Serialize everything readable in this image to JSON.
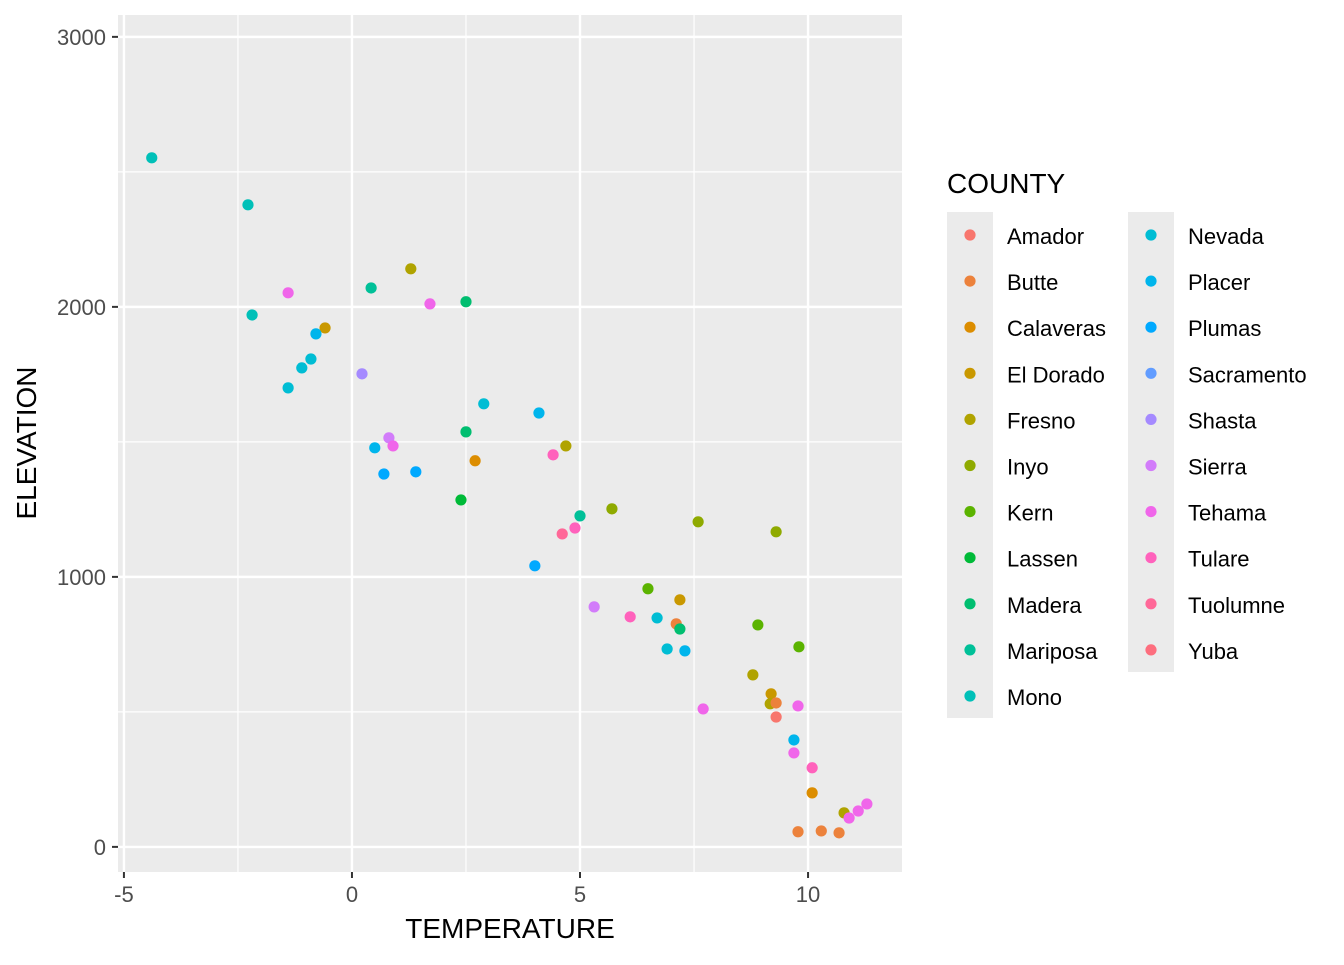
{
  "chart_data": {
    "type": "scatter",
    "xlabel": "TEMPERATURE",
    "ylabel": "ELEVATION",
    "xlim": [
      -5.13,
      12.06
    ],
    "ylim": [
      -93,
      3081
    ],
    "x_ticks": [
      -5,
      0,
      5,
      10
    ],
    "x_tick_labels": [
      "-5",
      "0",
      "5",
      "10"
    ],
    "y_ticks": [
      0,
      1000,
      2000,
      3000
    ],
    "y_tick_labels": [
      "0",
      "1000",
      "2000",
      "3000"
    ],
    "grid": true,
    "legend": {
      "title": "COUNTY",
      "placement": "right",
      "entries": [
        {
          "name": "Amador",
          "color": "#F8766D"
        },
        {
          "name": "Butte",
          "color": "#EC823C"
        },
        {
          "name": "Calaveras",
          "color": "#DC8D00"
        },
        {
          "name": "El Dorado",
          "color": "#C99800"
        },
        {
          "name": "Fresno",
          "color": "#B0A300"
        },
        {
          "name": "Inyo",
          "color": "#8FAA00"
        },
        {
          "name": "Kern",
          "color": "#5BB300"
        },
        {
          "name": "Lassen",
          "color": "#00BA38"
        },
        {
          "name": "Madera",
          "color": "#00BE70"
        },
        {
          "name": "Mariposa",
          "color": "#00C098"
        },
        {
          "name": "Mono",
          "color": "#00C0B8"
        },
        {
          "name": "Nevada",
          "color": "#00BDD4"
        },
        {
          "name": "Placer",
          "color": "#00B5EC"
        },
        {
          "name": "Plumas",
          "color": "#00A9FF"
        },
        {
          "name": "Sacramento",
          "color": "#619CFF"
        },
        {
          "name": "Shasta",
          "color": "#A58AFF"
        },
        {
          "name": "Sierra",
          "color": "#D27CFA"
        },
        {
          "name": "Tehama",
          "color": "#F066EA"
        },
        {
          "name": "Tulare",
          "color": "#FF62BC"
        },
        {
          "name": "Tuolumne",
          "color": "#FF6898"
        },
        {
          "name": "Yuba",
          "color": "#FD6E7E"
        }
      ]
    },
    "points": [
      {
        "x": -4.39,
        "y": 2552,
        "county": "Mono"
      },
      {
        "x": -2.28,
        "y": 2378,
        "county": "Mono"
      },
      {
        "x": -2.19,
        "y": 1970,
        "county": "Mono"
      },
      {
        "x": -1.4,
        "y": 2052,
        "county": "Tehama"
      },
      {
        "x": -0.59,
        "y": 1922,
        "county": "El Dorado"
      },
      {
        "x": -0.79,
        "y": 1900,
        "county": "Placer"
      },
      {
        "x": -0.9,
        "y": 1807,
        "county": "Nevada"
      },
      {
        "x": -1.1,
        "y": 1774,
        "county": "Nevada"
      },
      {
        "x": -1.4,
        "y": 1700,
        "county": "Nevada"
      },
      {
        "x": 0.22,
        "y": 1752,
        "county": "Shasta"
      },
      {
        "x": 0.42,
        "y": 2070,
        "county": "Mariposa"
      },
      {
        "x": 1.29,
        "y": 2141,
        "county": "Fresno"
      },
      {
        "x": 1.71,
        "y": 2011,
        "county": "Tehama"
      },
      {
        "x": 2.5,
        "y": 2019,
        "county": "Madera"
      },
      {
        "x": 2.89,
        "y": 1641,
        "county": "Nevada"
      },
      {
        "x": 2.5,
        "y": 1537,
        "county": "Madera"
      },
      {
        "x": 2.7,
        "y": 1430,
        "county": "Calaveras"
      },
      {
        "x": 2.39,
        "y": 1285,
        "county": "Lassen"
      },
      {
        "x": 0.81,
        "y": 1515,
        "county": "Sierra"
      },
      {
        "x": 0.9,
        "y": 1485,
        "county": "Tehama"
      },
      {
        "x": 0.5,
        "y": 1478,
        "county": "Placer"
      },
      {
        "x": 0.7,
        "y": 1381,
        "county": "Plumas"
      },
      {
        "x": 1.4,
        "y": 1389,
        "county": "Plumas"
      },
      {
        "x": 4.1,
        "y": 1607,
        "county": "Placer"
      },
      {
        "x": 4.69,
        "y": 1485,
        "county": "Fresno"
      },
      {
        "x": 4.41,
        "y": 1452,
        "county": "Tulare"
      },
      {
        "x": 5.7,
        "y": 1252,
        "county": "Inyo"
      },
      {
        "x": 5.0,
        "y": 1226,
        "county": "Mariposa"
      },
      {
        "x": 4.89,
        "y": 1181,
        "county": "Tulare"
      },
      {
        "x": 4.61,
        "y": 1159,
        "county": "Tuolumne"
      },
      {
        "x": 7.59,
        "y": 1204,
        "county": "Inyo"
      },
      {
        "x": 9.3,
        "y": 1167,
        "county": "Inyo"
      },
      {
        "x": 4.01,
        "y": 1041,
        "county": "Plumas"
      },
      {
        "x": 6.49,
        "y": 956,
        "county": "Kern"
      },
      {
        "x": 7.19,
        "y": 915,
        "county": "El Dorado"
      },
      {
        "x": 5.31,
        "y": 889,
        "county": "Sierra"
      },
      {
        "x": 6.1,
        "y": 852,
        "county": "Tulare"
      },
      {
        "x": 6.69,
        "y": 848,
        "county": "Nevada"
      },
      {
        "x": 7.11,
        "y": 826,
        "county": "Butte"
      },
      {
        "x": 7.19,
        "y": 807,
        "county": "Madera"
      },
      {
        "x": 8.9,
        "y": 822,
        "county": "Kern"
      },
      {
        "x": 9.8,
        "y": 741,
        "county": "Kern"
      },
      {
        "x": 6.91,
        "y": 733,
        "county": "Nevada"
      },
      {
        "x": 7.3,
        "y": 726,
        "county": "Placer"
      },
      {
        "x": 8.79,
        "y": 637,
        "county": "Fresno"
      },
      {
        "x": 9.19,
        "y": 567,
        "county": "El Dorado"
      },
      {
        "x": 9.17,
        "y": 530,
        "county": "Fresno"
      },
      {
        "x": 9.3,
        "y": 533,
        "county": "Butte"
      },
      {
        "x": 9.3,
        "y": 481,
        "county": "Amador"
      },
      {
        "x": 7.7,
        "y": 511,
        "county": "Tehama"
      },
      {
        "x": 9.78,
        "y": 522,
        "county": "Tehama"
      },
      {
        "x": 9.69,
        "y": 396,
        "county": "Placer"
      },
      {
        "x": 9.69,
        "y": 348,
        "county": "Tehama"
      },
      {
        "x": 10.09,
        "y": 293,
        "county": "Tulare"
      },
      {
        "x": 10.09,
        "y": 200,
        "county": "Calaveras"
      },
      {
        "x": 10.79,
        "y": 126,
        "county": "Fresno"
      },
      {
        "x": 10.9,
        "y": 107,
        "county": "Tehama"
      },
      {
        "x": 11.1,
        "y": 133,
        "county": "Tehama"
      },
      {
        "x": 11.29,
        "y": 159,
        "county": "Tehama"
      },
      {
        "x": 9.78,
        "y": 56,
        "county": "Butte"
      },
      {
        "x": 10.29,
        "y": 59,
        "county": "Butte"
      },
      {
        "x": 10.68,
        "y": 52,
        "county": "Butte"
      }
    ]
  }
}
